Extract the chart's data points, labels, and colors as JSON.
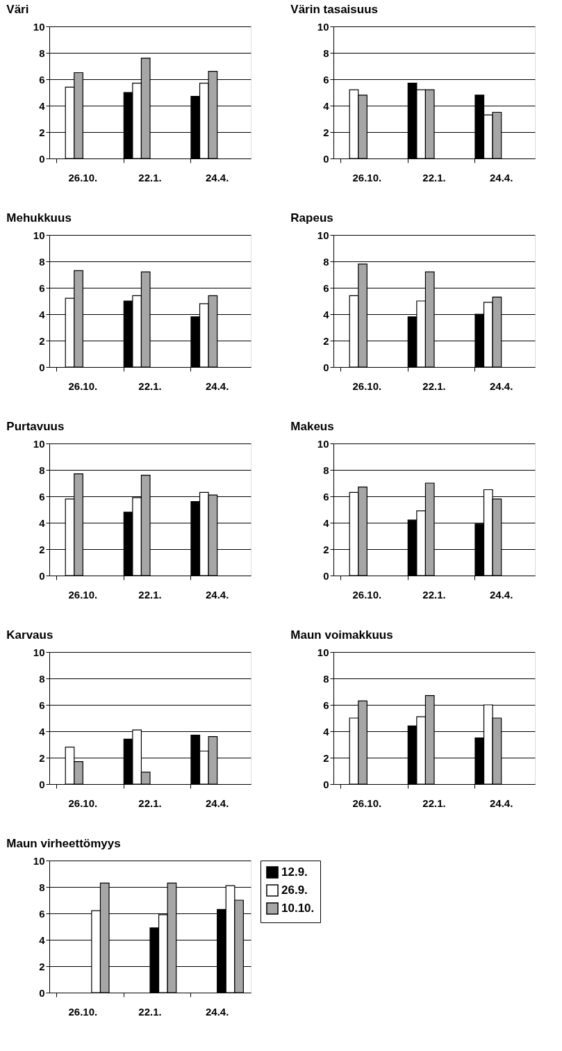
{
  "chart_data": [
    {
      "type": "bar",
      "title": "Väri",
      "categories": [
        "26.10.",
        "22.1.",
        "24.4."
      ],
      "ylim": [
        0,
        10
      ],
      "yticks": [
        0,
        2,
        4,
        6,
        8,
        10
      ],
      "grid": "y",
      "series": [
        {
          "color": "#000000",
          "values": [
            null,
            5.0,
            4.7
          ]
        },
        {
          "color": "#ffffff",
          "values": [
            5.4,
            5.7,
            5.7
          ]
        },
        {
          "color": "#a6a6a6",
          "values": [
            6.5,
            7.6,
            6.6
          ]
        }
      ]
    },
    {
      "type": "bar",
      "title": "Värin tasaisuus",
      "categories": [
        "26.10.",
        "22.1.",
        "24.4."
      ],
      "ylim": [
        0,
        10
      ],
      "yticks": [
        0,
        2,
        4,
        6,
        8,
        10
      ],
      "grid": "y",
      "series": [
        {
          "color": "#000000",
          "values": [
            null,
            5.7,
            4.8
          ]
        },
        {
          "color": "#ffffff",
          "values": [
            5.2,
            5.2,
            3.3
          ]
        },
        {
          "color": "#a6a6a6",
          "values": [
            4.8,
            5.2,
            3.5
          ]
        }
      ]
    },
    {
      "type": "bar",
      "title": "Mehukkuus",
      "categories": [
        "26.10.",
        "22.1.",
        "24.4."
      ],
      "ylim": [
        0,
        10
      ],
      "yticks": [
        0,
        2,
        4,
        6,
        8,
        10
      ],
      "grid": "y",
      "series": [
        {
          "color": "#000000",
          "values": [
            null,
            5.0,
            3.8
          ]
        },
        {
          "color": "#ffffff",
          "values": [
            5.2,
            5.4,
            4.8
          ]
        },
        {
          "color": "#a6a6a6",
          "values": [
            7.3,
            7.2,
            5.4
          ]
        }
      ]
    },
    {
      "type": "bar",
      "title": "Rapeus",
      "categories": [
        "26.10.",
        "22.1.",
        "24.4."
      ],
      "ylim": [
        0,
        10
      ],
      "yticks": [
        0,
        2,
        4,
        6,
        8,
        10
      ],
      "grid": "y",
      "series": [
        {
          "color": "#000000",
          "values": [
            null,
            3.8,
            4.0
          ]
        },
        {
          "color": "#ffffff",
          "values": [
            5.4,
            5.0,
            4.9
          ]
        },
        {
          "color": "#a6a6a6",
          "values": [
            7.8,
            7.2,
            5.3
          ]
        }
      ]
    },
    {
      "type": "bar",
      "title": "Purtavuus",
      "categories": [
        "26.10.",
        "22.1.",
        "24.4."
      ],
      "ylim": [
        0,
        10
      ],
      "yticks": [
        0,
        2,
        4,
        6,
        8,
        10
      ],
      "grid": "y",
      "series": [
        {
          "color": "#000000",
          "values": [
            null,
            4.8,
            5.6
          ]
        },
        {
          "color": "#ffffff",
          "values": [
            5.8,
            5.9,
            6.3
          ]
        },
        {
          "color": "#a6a6a6",
          "values": [
            7.7,
            7.6,
            6.1
          ]
        }
      ]
    },
    {
      "type": "bar",
      "title": "Makeus",
      "categories": [
        "26.10.",
        "22.1.",
        "24.4."
      ],
      "ylim": [
        0,
        10
      ],
      "yticks": [
        0,
        2,
        4,
        6,
        8,
        10
      ],
      "grid": "y",
      "series": [
        {
          "color": "#000000",
          "values": [
            null,
            4.2,
            3.9
          ]
        },
        {
          "color": "#ffffff",
          "values": [
            6.3,
            4.9,
            6.5
          ]
        },
        {
          "color": "#a6a6a6",
          "values": [
            6.7,
            7.0,
            5.8
          ]
        }
      ]
    },
    {
      "type": "bar",
      "title": "Karvaus",
      "categories": [
        "26.10.",
        "22.1.",
        "24.4."
      ],
      "ylim": [
        0,
        10
      ],
      "yticks": [
        0,
        2,
        4,
        6,
        8,
        10
      ],
      "grid": "y",
      "series": [
        {
          "color": "#000000",
          "values": [
            null,
            3.4,
            3.7
          ]
        },
        {
          "color": "#ffffff",
          "values": [
            2.8,
            4.1,
            2.5
          ]
        },
        {
          "color": "#a6a6a6",
          "values": [
            1.7,
            0.9,
            3.6
          ]
        }
      ]
    },
    {
      "type": "bar",
      "title": "Maun voimakkuus",
      "categories": [
        "26.10.",
        "22.1.",
        "24.4."
      ],
      "ylim": [
        0,
        10
      ],
      "yticks": [
        0,
        2,
        4,
        6,
        8,
        10
      ],
      "grid": "y",
      "series": [
        {
          "color": "#000000",
          "values": [
            null,
            4.4,
            3.5
          ]
        },
        {
          "color": "#ffffff",
          "values": [
            5.0,
            5.1,
            6.0
          ]
        },
        {
          "color": "#a6a6a6",
          "values": [
            6.3,
            6.7,
            5.0
          ]
        }
      ]
    },
    {
      "type": "bar",
      "title": "Maun virheettömyys",
      "categories": [
        "26.10.",
        "22.1.",
        "24.4."
      ],
      "ylim": [
        0,
        10
      ],
      "yticks": [
        0,
        2,
        4,
        6,
        8,
        10
      ],
      "grid": "y",
      "legend": "right",
      "series": [
        {
          "name": "12.9.",
          "color": "#000000",
          "values": [
            null,
            4.9,
            6.3
          ]
        },
        {
          "name": "26.9.",
          "color": "#ffffff",
          "values": [
            6.2,
            5.9,
            8.1
          ]
        },
        {
          "name": "10.10.",
          "color": "#a6a6a6",
          "values": [
            8.3,
            8.3,
            7.0
          ]
        }
      ]
    }
  ]
}
